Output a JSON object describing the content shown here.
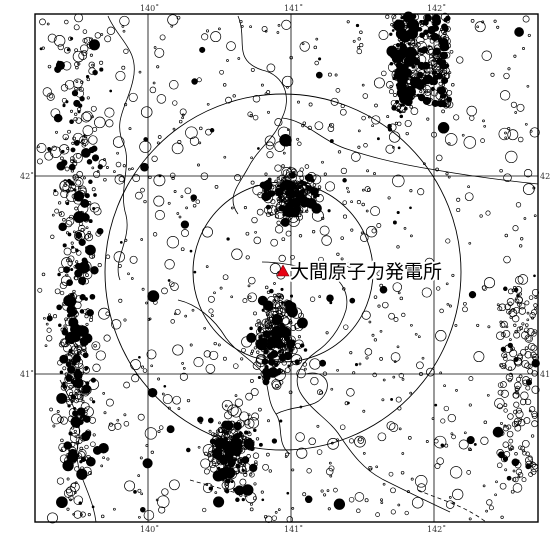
{
  "map": {
    "site_label": "大間原子力発電所",
    "site_marker_color": "#e60012",
    "longitude_ticks": [
      "140˚",
      "141˚",
      "142˚"
    ],
    "latitude_ticks": [
      "42˚",
      "41˚"
    ],
    "range_rings": [
      "small",
      "large"
    ],
    "feature_color": "#000000",
    "background_color": "#ffffff",
    "quake_clusters": [
      {
        "name": "hokkaido-west-coast-cluster",
        "lon": 139.5,
        "lat": 42.0
      },
      {
        "name": "shimokita-north-cluster",
        "lon": 141.0,
        "lat": 41.9
      },
      {
        "name": "mutsu-bay-cluster",
        "lon": 140.9,
        "lat": 41.2
      },
      {
        "name": "hokkaido-east-cluster",
        "lon": 141.8,
        "lat": 42.6
      },
      {
        "name": "aomori-west-cluster",
        "lon": 139.5,
        "lat": 41.0
      },
      {
        "name": "tsugaru-south-cluster",
        "lon": 140.6,
        "lat": 40.6
      }
    ]
  }
}
